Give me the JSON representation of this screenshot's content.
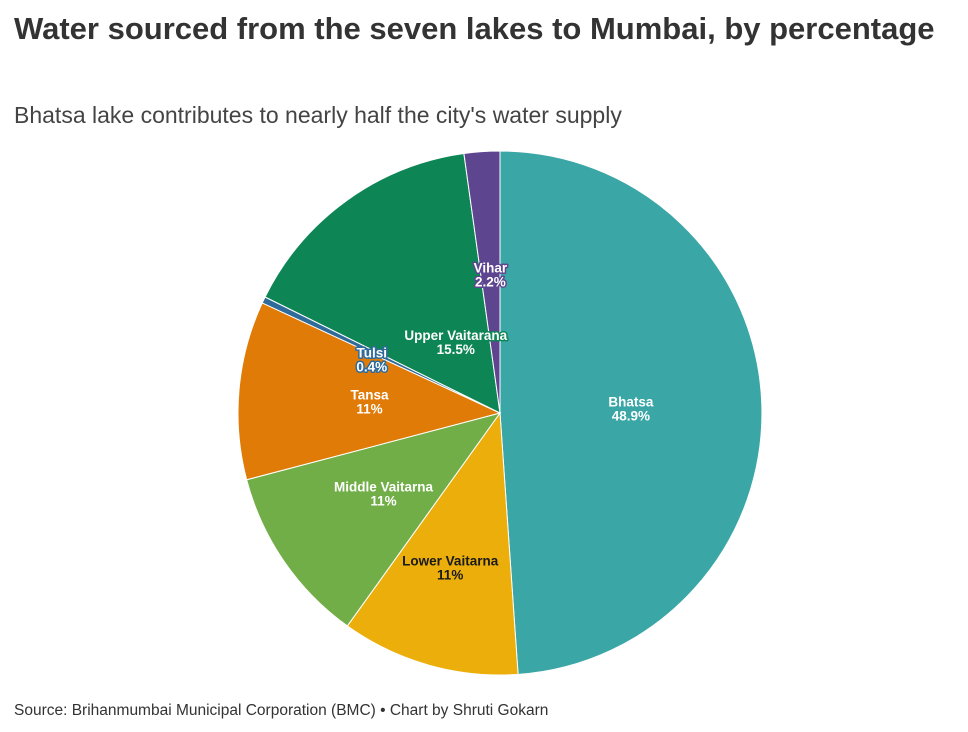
{
  "chart_data": {
    "type": "pie",
    "title": "Water sourced from the seven lakes to Mumbai, by percentage",
    "subtitle": "Bhatsa lake contributes to nearly half the city's water supply",
    "source": "Source: Brihanmumbai Municipal Corporation (BMC) • Chart by Shruti Gokarn",
    "slices": [
      {
        "label": "Bhatsa",
        "value": 48.9,
        "display": "48.9%",
        "color": "#3aa6a6",
        "text_color": "#ffffff",
        "halo": "#3aa6a6"
      },
      {
        "label": "Lower Vaitarna",
        "value": 11,
        "display": "11%",
        "color": "#ebae0b",
        "text_color": "#1a1a1a",
        "halo": "#ebae0b"
      },
      {
        "label": "Middle Vaitarna",
        "value": 11,
        "display": "11%",
        "color": "#72ae48",
        "text_color": "#ffffff",
        "halo": "#72ae48"
      },
      {
        "label": "Tansa",
        "value": 11,
        "display": "11%",
        "color": "#e07b08",
        "text_color": "#ffffff",
        "halo": "#e07b08"
      },
      {
        "label": "Tulsi",
        "value": 0.4,
        "display": "0.4%",
        "color": "#2f6b9a",
        "text_color": "#ffffff",
        "halo": "#2f6b9a"
      },
      {
        "label": "Upper Vaitarana",
        "value": 15.5,
        "display": "15.5%",
        "color": "#0e8555",
        "text_color": "#ffffff",
        "halo": "#0e8555"
      },
      {
        "label": "Vihar",
        "value": 2.2,
        "display": "2.2%",
        "color": "#5e4590",
        "text_color": "#ffffff",
        "halo": "#5e4590"
      }
    ]
  }
}
